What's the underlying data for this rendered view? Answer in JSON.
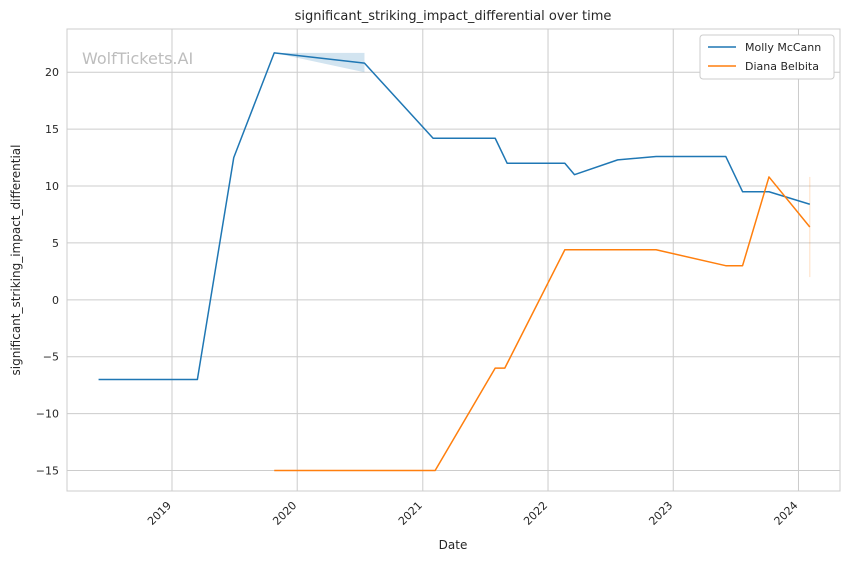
{
  "watermark": "WolfTickets.AI",
  "chart_data": {
    "type": "line",
    "title": "significant_striking_impact_differential over time",
    "xlabel": "Date",
    "ylabel": "significant_striking_impact_differential",
    "x_ticks": [
      "2019",
      "2020",
      "2021",
      "2022",
      "2023",
      "2024"
    ],
    "y_ticks": [
      20,
      15,
      10,
      5,
      0,
      -5,
      -10,
      -15
    ],
    "y_tick_labels": [
      "20",
      "15",
      "10",
      "5",
      "0",
      "−5",
      "−10",
      "−15"
    ],
    "xlim": [
      "2018-03-01",
      "2024-05-01"
    ],
    "ylim": [
      -16.8,
      23.8
    ],
    "grid": true,
    "legend_position": "top-right",
    "series": [
      {
        "name": "Molly McCann",
        "color": "#1f77b4",
        "points": [
          {
            "x": "2018-06-01",
            "y": -7
          },
          {
            "x": "2019-03-16",
            "y": -7
          },
          {
            "x": "2019-06-30",
            "y": 12.5
          },
          {
            "x": "2019-10-26",
            "y": 21.7
          },
          {
            "x": "2020-07-15",
            "y": 20.8
          },
          {
            "x": "2021-01-31",
            "y": 14.2
          },
          {
            "x": "2021-07-31",
            "y": 14.2
          },
          {
            "x": "2021-09-04",
            "y": 12
          },
          {
            "x": "2022-02-19",
            "y": 12
          },
          {
            "x": "2022-03-19",
            "y": 11
          },
          {
            "x": "2022-07-23",
            "y": 12.3
          },
          {
            "x": "2022-11-12",
            "y": 12.6
          },
          {
            "x": "2023-06-03",
            "y": 12.6
          },
          {
            "x": "2023-07-22",
            "y": 9.5
          },
          {
            "x": "2023-10-07",
            "y": 9.5
          },
          {
            "x": "2024-02-03",
            "y": 8.4
          }
        ],
        "band": [
          {
            "x": "2019-10-26",
            "low": 21.7,
            "high": 21.7
          },
          {
            "x": "2020-07-15",
            "low": 20.0,
            "high": 21.7
          }
        ]
      },
      {
        "name": "Diana Belbita",
        "color": "#ff7f0e",
        "points": [
          {
            "x": "2019-10-26",
            "y": -15
          },
          {
            "x": "2021-02-06",
            "y": -15
          },
          {
            "x": "2021-07-31",
            "y": -6
          },
          {
            "x": "2021-08-28",
            "y": -6
          },
          {
            "x": "2022-02-19",
            "y": 4.4
          },
          {
            "x": "2022-11-12",
            "y": 4.4
          },
          {
            "x": "2023-06-03",
            "y": 3
          },
          {
            "x": "2023-07-22",
            "y": 3
          },
          {
            "x": "2023-10-07",
            "y": 10.8
          },
          {
            "x": "2024-02-03",
            "y": 6.4
          }
        ],
        "band": [
          {
            "x": "2024-02-03",
            "low": 2.0,
            "high": 10.8
          }
        ]
      }
    ]
  }
}
